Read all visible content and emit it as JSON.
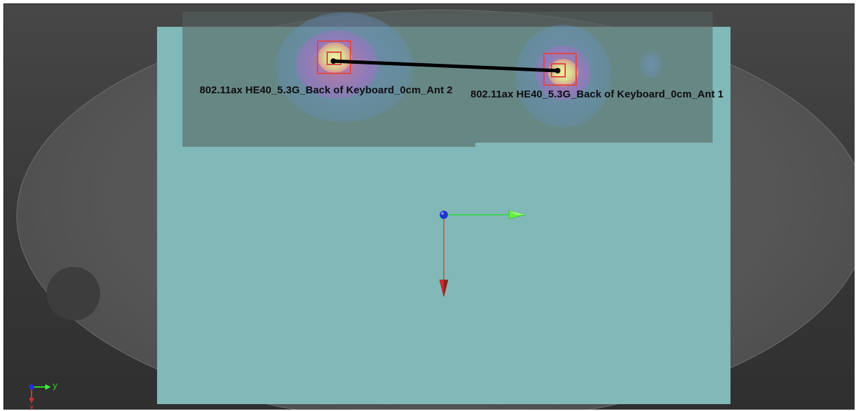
{
  "window": {
    "title": ""
  },
  "antennas": [
    {
      "id": "ant2",
      "label": "802.11ax HE40_5.3G_Back of Keyboard_0cm_Ant 2"
    },
    {
      "id": "ant1",
      "label": "802.11ax HE40_5.3G_Back of Keyboard_0cm_Ant 1"
    }
  ],
  "axis_triad": {
    "y_label": "y",
    "x_label": "x"
  },
  "colors": {
    "background": "#3a3a3a",
    "phantom": "#5a5a5a",
    "plate": "#80b9b8",
    "scan_region": "#566362",
    "marker": "#e04848",
    "axis_x": "#e03030",
    "axis_y": "#22dd22",
    "origin": "#2233cc",
    "connector": "#000000"
  },
  "icons": [
    "origin-sphere-icon",
    "x-axis-arrow-icon",
    "y-axis-arrow-icon",
    "orientation-triad-icon"
  ]
}
